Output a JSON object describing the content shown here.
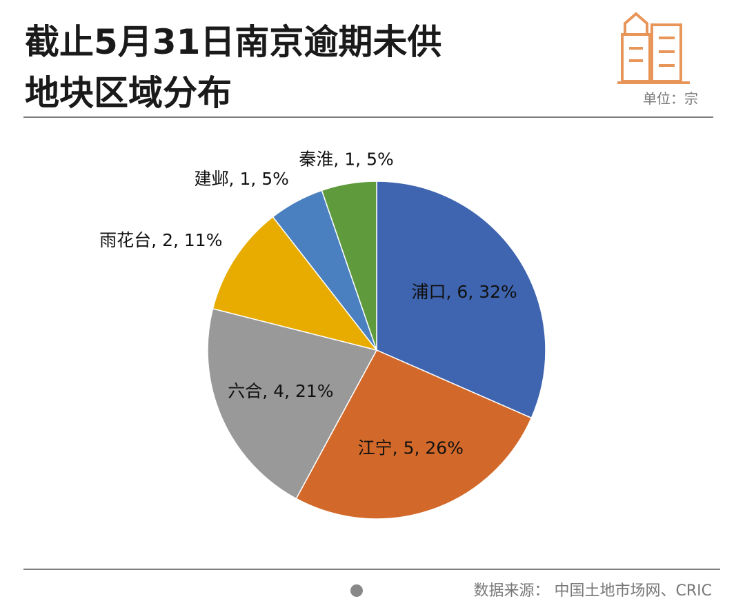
{
  "chart_data": {
    "type": "pie",
    "title_lines": [
      "截止5月31日南京逾期未供",
      "地块区域分布"
    ],
    "unit": "单位：宗",
    "source": "数据来源：  中国土地市场网、CRIC",
    "categories": [
      "浦口",
      "江宁",
      "六合",
      "雨花台",
      "建邺",
      "秦淮"
    ],
    "values": [
      6,
      5,
      4,
      2,
      1,
      1
    ],
    "percent_labels": [
      "32%",
      "26%",
      "21%",
      "11%",
      "5%",
      "5%"
    ],
    "label_separator": ", ",
    "colors": [
      "#3f65b0",
      "#d2692a",
      "#999999",
      "#e8ac00",
      "#4a80c0",
      "#5f9a3d"
    ]
  }
}
